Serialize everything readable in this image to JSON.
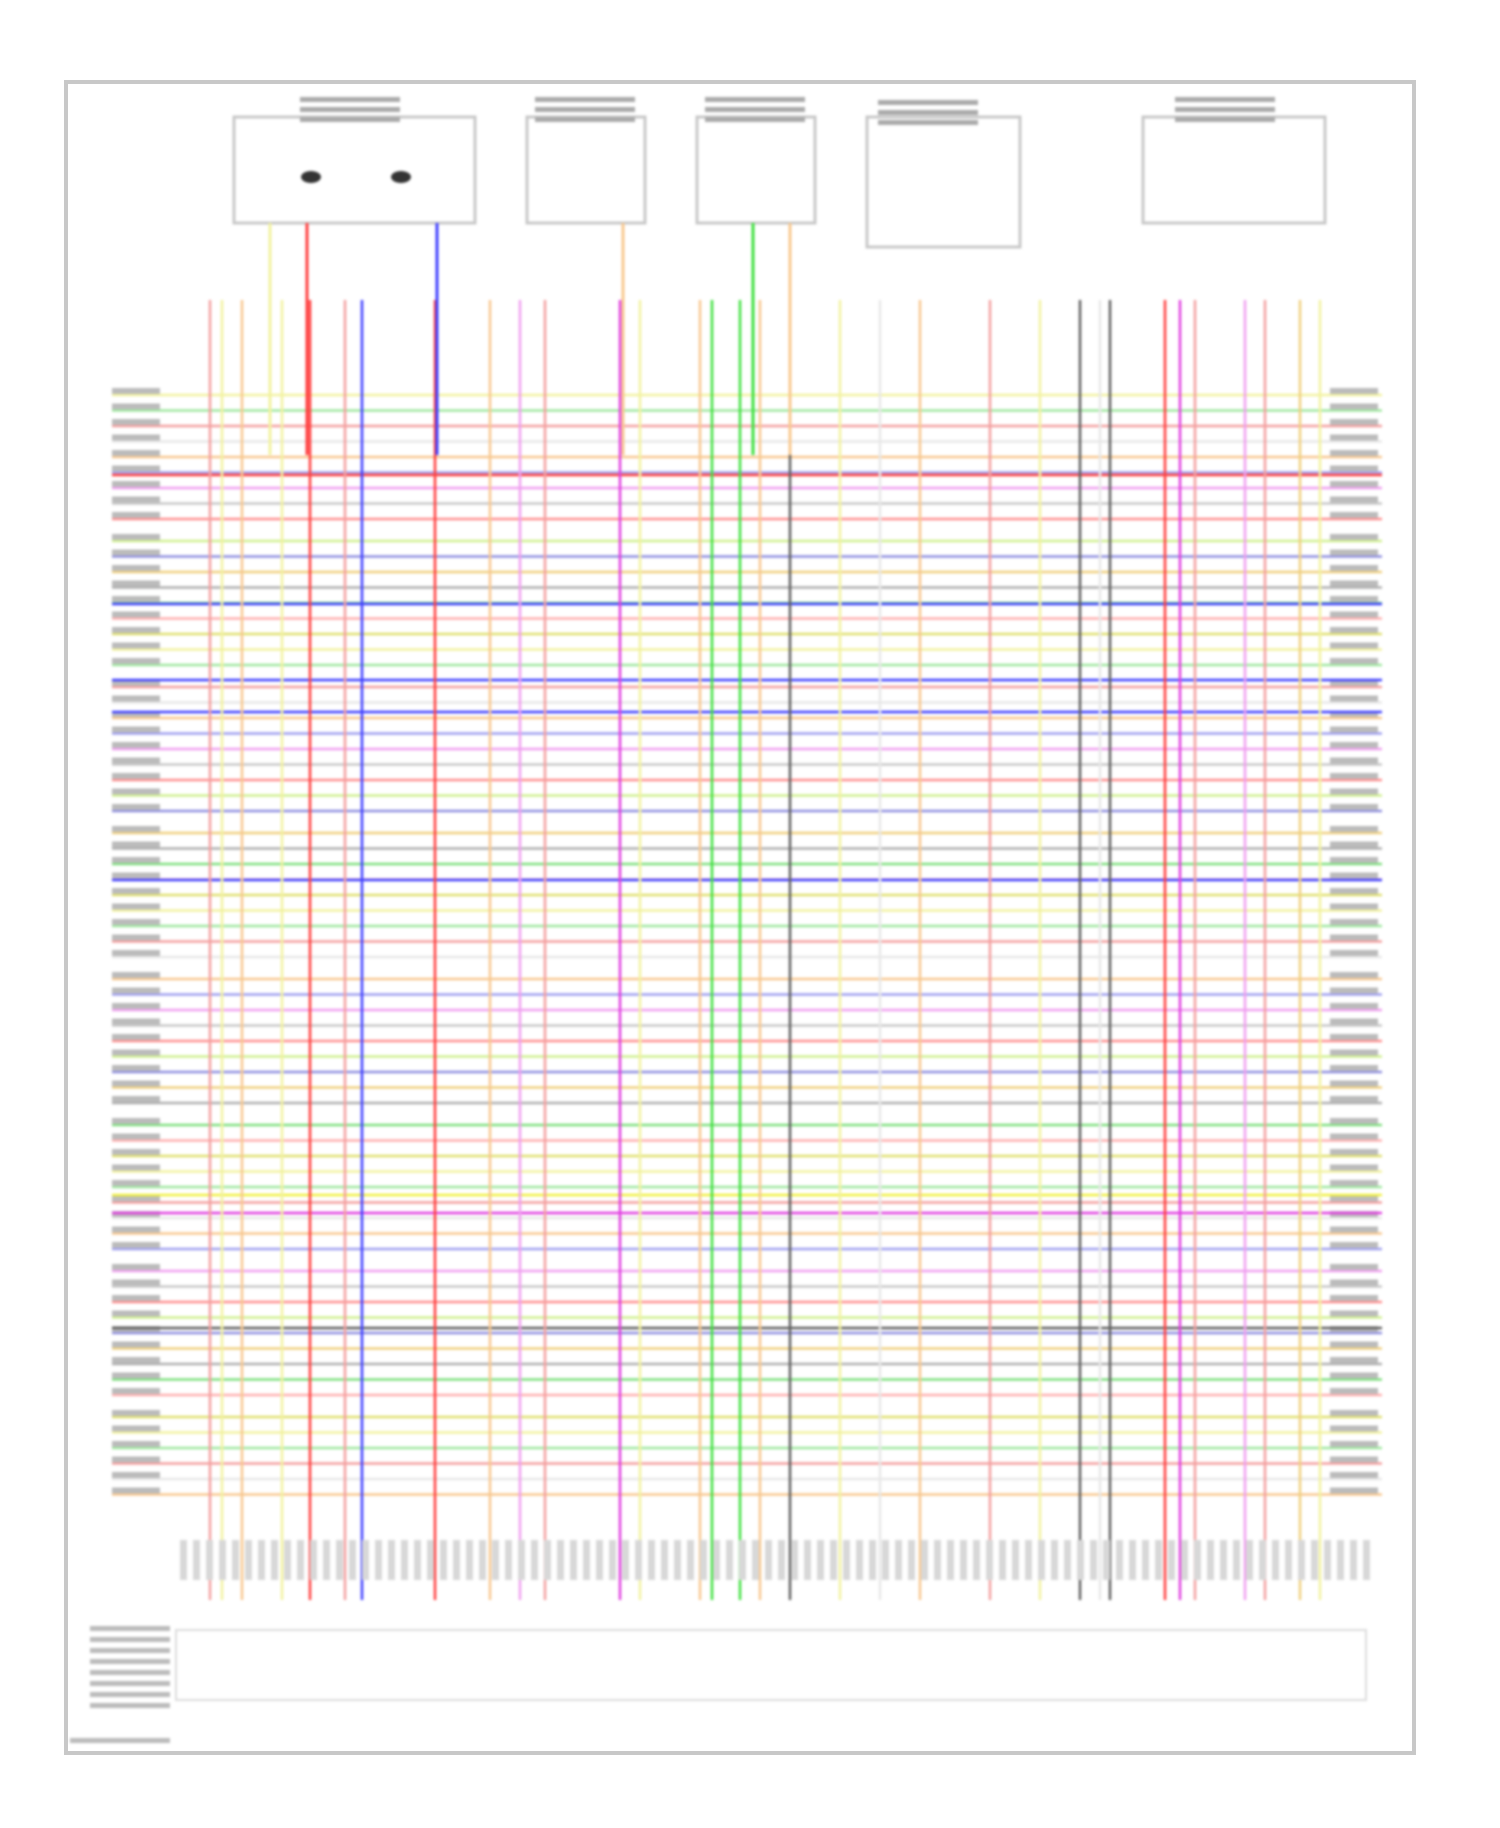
{
  "diagram": {
    "wire_colors": [
      "#f2f2a0",
      "#a0e8a0",
      "#f4a0a0",
      "#e8e8e8",
      "#f8c890",
      "#a0a0f0",
      "#f0a0f0",
      "#c8c8c8",
      "#ff9090",
      "#d0f090",
      "#9090e0",
      "#f0d080",
      "#b0b0b0",
      "#80e080",
      "#ffb0b0",
      "#e0e070"
    ],
    "accent_colors": {
      "red": "#ff4040",
      "blue": "#4040ff",
      "green": "#40e040",
      "magenta": "#e040e0",
      "yellow": "#f0f040",
      "dark": "#606060",
      "orange": "#f0b060"
    },
    "components": [
      {
        "name": "left-sensor-pair"
      },
      {
        "name": "sensor-2"
      },
      {
        "name": "sensor-3"
      },
      {
        "name": "module-4"
      },
      {
        "name": "module-5"
      }
    ]
  }
}
